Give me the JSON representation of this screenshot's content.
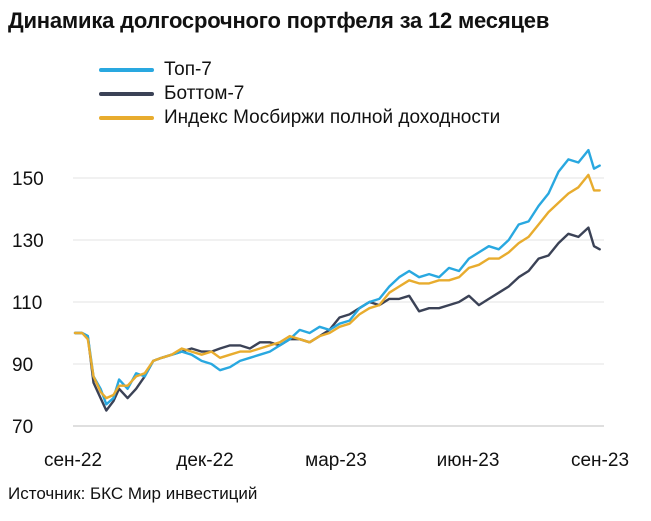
{
  "title": "Динамика долгосрочного портфеля за 12 месяцев",
  "source": "Источник: БКС Мир инвестиций",
  "legend": [
    {
      "label": "Топ-7",
      "color": "#29a8e0"
    },
    {
      "label": "Боттом-7",
      "color": "#3b4256"
    },
    {
      "label": "Индекс Мосбиржи полной доходности",
      "color": "#e8ac2e"
    }
  ],
  "chart_data": {
    "type": "line",
    "title": "Динамика долгосрочного портфеля за 12 месяцев",
    "xlabel": "",
    "ylabel": "",
    "x_ticks": [
      "сен-22",
      "дек-22",
      "мар-23",
      "июн-23",
      "сен-23"
    ],
    "xlim": [
      "2022-09-01",
      "2023-09-08"
    ],
    "y_ticks": [
      70,
      90,
      110,
      130,
      150
    ],
    "ylim": [
      70,
      160
    ],
    "grid": "horizontal",
    "legend_position": "top",
    "series": [
      {
        "name": "Топ-7",
        "color": "#29a8e0",
        "points": [
          [
            "2022-09-01",
            100
          ],
          [
            "2022-09-06",
            100
          ],
          [
            "2022-09-10",
            99
          ],
          [
            "2022-09-14",
            86
          ],
          [
            "2022-09-19",
            82
          ],
          [
            "2022-09-23",
            77
          ],
          [
            "2022-09-28",
            79
          ],
          [
            "2022-10-02",
            85
          ],
          [
            "2022-10-08",
            82
          ],
          [
            "2022-10-14",
            87
          ],
          [
            "2022-10-20",
            86
          ],
          [
            "2022-10-26",
            91
          ],
          [
            "2022-11-01",
            92
          ],
          [
            "2022-11-08",
            93
          ],
          [
            "2022-11-15",
            94
          ],
          [
            "2022-11-22",
            93
          ],
          [
            "2022-11-29",
            91
          ],
          [
            "2022-12-06",
            90
          ],
          [
            "2022-12-12",
            88
          ],
          [
            "2022-12-19",
            89
          ],
          [
            "2022-12-26",
            91
          ],
          [
            "2023-01-02",
            92
          ],
          [
            "2023-01-09",
            93
          ],
          [
            "2023-01-16",
            94
          ],
          [
            "2023-01-23",
            96
          ],
          [
            "2023-01-30",
            98
          ],
          [
            "2023-02-06",
            101
          ],
          [
            "2023-02-13",
            100
          ],
          [
            "2023-02-20",
            102
          ],
          [
            "2023-02-27",
            101
          ],
          [
            "2023-03-06",
            103
          ],
          [
            "2023-03-13",
            104
          ],
          [
            "2023-03-20",
            108
          ],
          [
            "2023-03-27",
            110
          ],
          [
            "2023-04-03",
            111
          ],
          [
            "2023-04-10",
            115
          ],
          [
            "2023-04-17",
            118
          ],
          [
            "2023-04-24",
            120
          ],
          [
            "2023-05-01",
            118
          ],
          [
            "2023-05-08",
            119
          ],
          [
            "2023-05-15",
            118
          ],
          [
            "2023-05-22",
            121
          ],
          [
            "2023-05-29",
            120
          ],
          [
            "2023-06-05",
            124
          ],
          [
            "2023-06-12",
            126
          ],
          [
            "2023-06-19",
            128
          ],
          [
            "2023-06-26",
            127
          ],
          [
            "2023-07-03",
            130
          ],
          [
            "2023-07-10",
            135
          ],
          [
            "2023-07-17",
            136
          ],
          [
            "2023-07-24",
            141
          ],
          [
            "2023-07-31",
            145
          ],
          [
            "2023-08-07",
            152
          ],
          [
            "2023-08-14",
            156
          ],
          [
            "2023-08-21",
            155
          ],
          [
            "2023-08-28",
            159
          ],
          [
            "2023-09-01",
            153
          ],
          [
            "2023-09-05",
            154
          ]
        ]
      },
      {
        "name": "Боттом-7",
        "color": "#3b4256",
        "points": [
          [
            "2022-09-01",
            100
          ],
          [
            "2022-09-06",
            100
          ],
          [
            "2022-09-10",
            99
          ],
          [
            "2022-09-14",
            84
          ],
          [
            "2022-09-19",
            79
          ],
          [
            "2022-09-23",
            75
          ],
          [
            "2022-09-28",
            78
          ],
          [
            "2022-10-02",
            82
          ],
          [
            "2022-10-08",
            79
          ],
          [
            "2022-10-14",
            82
          ],
          [
            "2022-10-20",
            86
          ],
          [
            "2022-10-26",
            91
          ],
          [
            "2022-11-01",
            92
          ],
          [
            "2022-11-08",
            93
          ],
          [
            "2022-11-15",
            94
          ],
          [
            "2022-11-22",
            95
          ],
          [
            "2022-11-29",
            94
          ],
          [
            "2022-12-06",
            94
          ],
          [
            "2022-12-12",
            95
          ],
          [
            "2022-12-19",
            96
          ],
          [
            "2022-12-26",
            96
          ],
          [
            "2023-01-02",
            95
          ],
          [
            "2023-01-09",
            97
          ],
          [
            "2023-01-16",
            97
          ],
          [
            "2023-01-23",
            96
          ],
          [
            "2023-01-30",
            98
          ],
          [
            "2023-02-06",
            98
          ],
          [
            "2023-02-13",
            97
          ],
          [
            "2023-02-20",
            99
          ],
          [
            "2023-02-27",
            101
          ],
          [
            "2023-03-06",
            105
          ],
          [
            "2023-03-13",
            106
          ],
          [
            "2023-03-20",
            108
          ],
          [
            "2023-03-27",
            110
          ],
          [
            "2023-04-03",
            109
          ],
          [
            "2023-04-10",
            111
          ],
          [
            "2023-04-17",
            111
          ],
          [
            "2023-04-24",
            112
          ],
          [
            "2023-05-01",
            107
          ],
          [
            "2023-05-08",
            108
          ],
          [
            "2023-05-15",
            108
          ],
          [
            "2023-05-22",
            109
          ],
          [
            "2023-05-29",
            110
          ],
          [
            "2023-06-05",
            112
          ],
          [
            "2023-06-12",
            109
          ],
          [
            "2023-06-19",
            111
          ],
          [
            "2023-06-26",
            113
          ],
          [
            "2023-07-03",
            115
          ],
          [
            "2023-07-10",
            118
          ],
          [
            "2023-07-17",
            120
          ],
          [
            "2023-07-24",
            124
          ],
          [
            "2023-07-31",
            125
          ],
          [
            "2023-08-07",
            129
          ],
          [
            "2023-08-14",
            132
          ],
          [
            "2023-08-21",
            131
          ],
          [
            "2023-08-28",
            134
          ],
          [
            "2023-09-01",
            128
          ],
          [
            "2023-09-05",
            127
          ]
        ]
      },
      {
        "name": "Индекс Мосбиржи полной доходности",
        "color": "#e8ac2e",
        "points": [
          [
            "2022-09-01",
            100
          ],
          [
            "2022-09-06",
            100
          ],
          [
            "2022-09-10",
            98
          ],
          [
            "2022-09-14",
            86
          ],
          [
            "2022-09-19",
            81
          ],
          [
            "2022-09-23",
            79
          ],
          [
            "2022-09-28",
            80
          ],
          [
            "2022-10-02",
            83
          ],
          [
            "2022-10-08",
            83
          ],
          [
            "2022-10-14",
            86
          ],
          [
            "2022-10-20",
            87
          ],
          [
            "2022-10-26",
            91
          ],
          [
            "2022-11-01",
            92
          ],
          [
            "2022-11-08",
            93
          ],
          [
            "2022-11-15",
            95
          ],
          [
            "2022-11-22",
            94
          ],
          [
            "2022-11-29",
            93
          ],
          [
            "2022-12-06",
            94
          ],
          [
            "2022-12-12",
            92
          ],
          [
            "2022-12-19",
            93
          ],
          [
            "2022-12-26",
            94
          ],
          [
            "2023-01-02",
            94
          ],
          [
            "2023-01-09",
            95
          ],
          [
            "2023-01-16",
            96
          ],
          [
            "2023-01-23",
            97
          ],
          [
            "2023-01-30",
            99
          ],
          [
            "2023-02-06",
            98
          ],
          [
            "2023-02-13",
            97
          ],
          [
            "2023-02-20",
            99
          ],
          [
            "2023-02-27",
            100
          ],
          [
            "2023-03-06",
            102
          ],
          [
            "2023-03-13",
            103
          ],
          [
            "2023-03-20",
            106
          ],
          [
            "2023-03-27",
            108
          ],
          [
            "2023-04-03",
            109
          ],
          [
            "2023-04-10",
            113
          ],
          [
            "2023-04-17",
            115
          ],
          [
            "2023-04-24",
            117
          ],
          [
            "2023-05-01",
            116
          ],
          [
            "2023-05-08",
            116
          ],
          [
            "2023-05-15",
            117
          ],
          [
            "2023-05-22",
            117
          ],
          [
            "2023-05-29",
            118
          ],
          [
            "2023-06-05",
            121
          ],
          [
            "2023-06-12",
            122
          ],
          [
            "2023-06-19",
            124
          ],
          [
            "2023-06-26",
            124
          ],
          [
            "2023-07-03",
            126
          ],
          [
            "2023-07-10",
            129
          ],
          [
            "2023-07-17",
            131
          ],
          [
            "2023-07-24",
            135
          ],
          [
            "2023-07-31",
            139
          ],
          [
            "2023-08-07",
            142
          ],
          [
            "2023-08-14",
            145
          ],
          [
            "2023-08-21",
            147
          ],
          [
            "2023-08-28",
            151
          ],
          [
            "2023-09-01",
            146
          ],
          [
            "2023-09-05",
            146
          ]
        ]
      }
    ]
  }
}
